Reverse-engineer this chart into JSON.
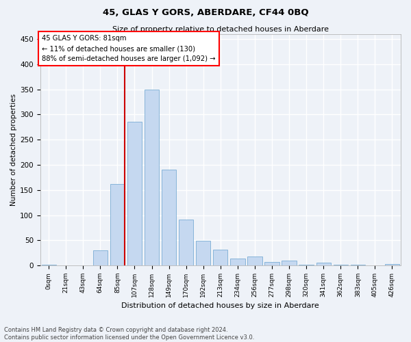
{
  "title": "45, GLAS Y GORS, ABERDARE, CF44 0BQ",
  "subtitle": "Size of property relative to detached houses in Aberdare",
  "xlabel": "Distribution of detached houses by size in Aberdare",
  "ylabel": "Number of detached properties",
  "bar_color": "#c5d8f0",
  "bar_edge_color": "#7aadd4",
  "categories": [
    "0sqm",
    "21sqm",
    "43sqm",
    "64sqm",
    "85sqm",
    "107sqm",
    "128sqm",
    "149sqm",
    "170sqm",
    "192sqm",
    "213sqm",
    "234sqm",
    "256sqm",
    "277sqm",
    "298sqm",
    "320sqm",
    "341sqm",
    "362sqm",
    "383sqm",
    "405sqm",
    "426sqm"
  ],
  "values": [
    2,
    0,
    0,
    30,
    162,
    285,
    350,
    190,
    91,
    49,
    31,
    14,
    18,
    7,
    10,
    1,
    5,
    1,
    1,
    0,
    3
  ],
  "ylim": [
    0,
    460
  ],
  "yticks": [
    0,
    50,
    100,
    150,
    200,
    250,
    300,
    350,
    400,
    450
  ],
  "annotation_text_line1": "45 GLAS Y GORS: 81sqm",
  "annotation_text_line2": "← 11% of detached houses are smaller (130)",
  "annotation_text_line3": "88% of semi-detached houses are larger (1,092) →",
  "vline_color": "#cc0000",
  "vline_x_index": 4,
  "footer_line1": "Contains HM Land Registry data © Crown copyright and database right 2024.",
  "footer_line2": "Contains public sector information licensed under the Open Government Licence v3.0.",
  "background_color": "#eef2f8",
  "grid_color": "#ffffff"
}
